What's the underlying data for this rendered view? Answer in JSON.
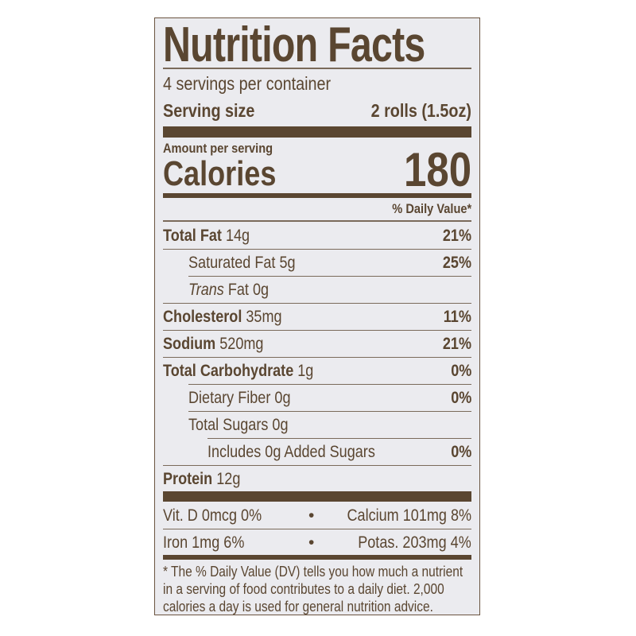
{
  "title": "Nutrition Facts",
  "servings_per_container": "4 servings per container",
  "serving_size": {
    "label": "Serving size",
    "value": "2 rolls (1.5oz)"
  },
  "amount_per_serving": "Amount per serving",
  "calories": {
    "label": "Calories",
    "value": "180"
  },
  "daily_value_header": "% Daily Value*",
  "nutrients": [
    {
      "name": "Total Fat",
      "amount": "14g",
      "dv": "21%"
    },
    {
      "name": "Saturated Fat",
      "amount": "5g",
      "dv": "25%"
    },
    {
      "name": "Trans",
      "name_suffix": "Fat",
      "amount": "0g",
      "dv": ""
    },
    {
      "name": "Cholesterol",
      "amount": "35mg",
      "dv": "11%"
    },
    {
      "name": "Sodium",
      "amount": "520mg",
      "dv": "21%"
    },
    {
      "name": "Total Carbohydrate",
      "amount": "1g",
      "dv": "0%"
    },
    {
      "name": "Dietary Fiber",
      "amount": "0g",
      "dv": "0%"
    },
    {
      "name": "Total Sugars",
      "amount": "0g",
      "dv": ""
    },
    {
      "name": "Includes 0g Added Sugars",
      "amount": "",
      "dv": "0%"
    },
    {
      "name": "Protein",
      "amount": "12g",
      "dv": ""
    }
  ],
  "vitamins": [
    {
      "left": "Vit. D 0mcg 0%",
      "right": "Calcium 101mg 8%"
    },
    {
      "left": "Iron 1mg 6%",
      "right": "Potas. 203mg 4%"
    }
  ],
  "bullet": "•",
  "footnote": [
    "* The % Daily Value (DV) tells you how much a nutrient",
    "in a serving of food contributes to a daily diet. 2,000",
    "calories a day is used for general nutrition advice."
  ],
  "colors": {
    "ink": "#5a4631",
    "background": "#ebebef"
  }
}
